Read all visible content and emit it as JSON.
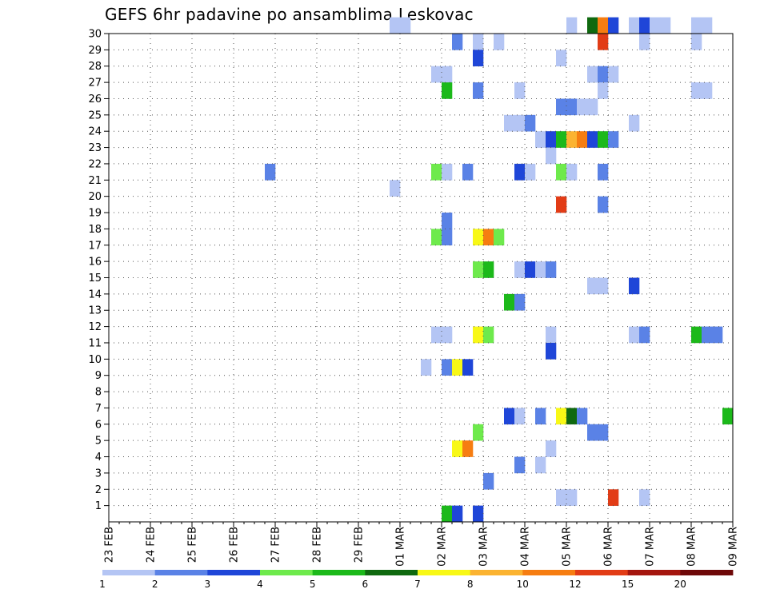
{
  "chart_data": {
    "type": "heatmap",
    "title": "GEFS 6hr padavine po ansamblima Leskovac",
    "xlabel": "",
    "ylabel": "",
    "x_tick_labels": [
      "23 FEB",
      "24 FEB",
      "25 FEB",
      "26 FEB",
      "27 FEB",
      "28 FEB",
      "29 FEB",
      "01 MAR",
      "02 MAR",
      "03 MAR",
      "04 MAR",
      "05 MAR",
      "06 MAR",
      "07 MAR",
      "08 MAR",
      "09 MAR"
    ],
    "y_tick_labels": [
      "1",
      "2",
      "3",
      "4",
      "5",
      "6",
      "7",
      "8",
      "9",
      "10",
      "11",
      "12",
      "13",
      "14",
      "15",
      "16",
      "17",
      "18",
      "19",
      "20",
      "21",
      "22",
      "23",
      "24",
      "25",
      "26",
      "27",
      "28",
      "29",
      "30"
    ],
    "x_range_days": [
      0,
      15
    ],
    "y_range": [
      0,
      30
    ],
    "grid": true,
    "time_step_hours": 6,
    "colorbar": {
      "tick_labels": [
        "1",
        "2",
        "3",
        "4",
        "5",
        "6",
        "7",
        "8",
        "10",
        "12",
        "15",
        "20"
      ],
      "colors": [
        "#b4c5f4",
        "#5a82e6",
        "#1f46d8",
        "#6eea4c",
        "#1cb91a",
        "#0f690f",
        "#f8f816",
        "#fbb331",
        "#f67d11",
        "#e23c16",
        "#a5160e",
        "#6e0808"
      ]
    },
    "cells": [
      {
        "m": 30,
        "s": 27,
        "c": 0
      },
      {
        "m": 30,
        "s": 28,
        "c": 0
      },
      {
        "m": 30,
        "s": 44,
        "c": 0
      },
      {
        "m": 30,
        "s": 46,
        "c": 5
      },
      {
        "m": 30,
        "s": 47,
        "c": 8
      },
      {
        "m": 30,
        "s": 48,
        "c": 2
      },
      {
        "m": 30,
        "s": 50,
        "c": 0
      },
      {
        "m": 30,
        "s": 51,
        "c": 2
      },
      {
        "m": 30,
        "s": 52,
        "c": 0
      },
      {
        "m": 30,
        "s": 53,
        "c": 0
      },
      {
        "m": 30,
        "s": 56,
        "c": 0
      },
      {
        "m": 30,
        "s": 57,
        "c": 0
      },
      {
        "m": 29,
        "s": 33,
        "c": 1
      },
      {
        "m": 29,
        "s": 35,
        "c": 0
      },
      {
        "m": 29,
        "s": 37,
        "c": 0
      },
      {
        "m": 29,
        "s": 47,
        "c": 9
      },
      {
        "m": 29,
        "s": 51,
        "c": 0
      },
      {
        "m": 29,
        "s": 56,
        "c": 0
      },
      {
        "m": 28,
        "s": 35,
        "c": 2
      },
      {
        "m": 28,
        "s": 43,
        "c": 0
      },
      {
        "m": 27,
        "s": 31,
        "c": 0
      },
      {
        "m": 27,
        "s": 32,
        "c": 0
      },
      {
        "m": 27,
        "s": 46,
        "c": 0
      },
      {
        "m": 27,
        "s": 47,
        "c": 1
      },
      {
        "m": 27,
        "s": 48,
        "c": 0
      },
      {
        "m": 26,
        "s": 32,
        "c": 4
      },
      {
        "m": 26,
        "s": 35,
        "c": 1
      },
      {
        "m": 26,
        "s": 39,
        "c": 0
      },
      {
        "m": 26,
        "s": 47,
        "c": 0
      },
      {
        "m": 26,
        "s": 56,
        "c": 0
      },
      {
        "m": 26,
        "s": 57,
        "c": 0
      },
      {
        "m": 25,
        "s": 43,
        "c": 1
      },
      {
        "m": 25,
        "s": 44,
        "c": 1
      },
      {
        "m": 25,
        "s": 45,
        "c": 0
      },
      {
        "m": 25,
        "s": 46,
        "c": 0
      },
      {
        "m": 24,
        "s": 38,
        "c": 0
      },
      {
        "m": 24,
        "s": 39,
        "c": 0
      },
      {
        "m": 24,
        "s": 40,
        "c": 1
      },
      {
        "m": 24,
        "s": 50,
        "c": 0
      },
      {
        "m": 23,
        "s": 41,
        "c": 0
      },
      {
        "m": 23,
        "s": 42,
        "c": 2
      },
      {
        "m": 23,
        "s": 43,
        "c": 4
      },
      {
        "m": 23,
        "s": 44,
        "c": 7
      },
      {
        "m": 23,
        "s": 45,
        "c": 8
      },
      {
        "m": 23,
        "s": 46,
        "c": 2
      },
      {
        "m": 23,
        "s": 47,
        "c": 4
      },
      {
        "m": 23,
        "s": 48,
        "c": 1
      },
      {
        "m": 22,
        "s": 42,
        "c": 0
      },
      {
        "m": 21,
        "s": 15,
        "c": 1
      },
      {
        "m": 21,
        "s": 31,
        "c": 3
      },
      {
        "m": 21,
        "s": 32,
        "c": 0
      },
      {
        "m": 21,
        "s": 34,
        "c": 1
      },
      {
        "m": 21,
        "s": 39,
        "c": 2
      },
      {
        "m": 21,
        "s": 40,
        "c": 0
      },
      {
        "m": 21,
        "s": 43,
        "c": 3
      },
      {
        "m": 21,
        "s": 44,
        "c": 0
      },
      {
        "m": 21,
        "s": 47,
        "c": 1
      },
      {
        "m": 20,
        "s": 27,
        "c": 0
      },
      {
        "m": 19,
        "s": 43,
        "c": 9
      },
      {
        "m": 19,
        "s": 47,
        "c": 1
      },
      {
        "m": 18,
        "s": 32,
        "c": 1
      },
      {
        "m": 17,
        "s": 31,
        "c": 3
      },
      {
        "m": 17,
        "s": 32,
        "c": 1
      },
      {
        "m": 17,
        "s": 35,
        "c": 6
      },
      {
        "m": 17,
        "s": 36,
        "c": 8
      },
      {
        "m": 17,
        "s": 37,
        "c": 3
      },
      {
        "m": 15,
        "s": 35,
        "c": 3
      },
      {
        "m": 15,
        "s": 36,
        "c": 4
      },
      {
        "m": 15,
        "s": 39,
        "c": 0
      },
      {
        "m": 15,
        "s": 40,
        "c": 2
      },
      {
        "m": 15,
        "s": 41,
        "c": 0
      },
      {
        "m": 15,
        "s": 42,
        "c": 1
      },
      {
        "m": 14,
        "s": 46,
        "c": 0
      },
      {
        "m": 14,
        "s": 47,
        "c": 0
      },
      {
        "m": 14,
        "s": 50,
        "c": 2
      },
      {
        "m": 13,
        "s": 38,
        "c": 4
      },
      {
        "m": 13,
        "s": 39,
        "c": 1
      },
      {
        "m": 11,
        "s": 31,
        "c": 0
      },
      {
        "m": 11,
        "s": 32,
        "c": 0
      },
      {
        "m": 11,
        "s": 35,
        "c": 6
      },
      {
        "m": 11,
        "s": 36,
        "c": 3
      },
      {
        "m": 11,
        "s": 42,
        "c": 0
      },
      {
        "m": 11,
        "s": 50,
        "c": 0
      },
      {
        "m": 11,
        "s": 51,
        "c": 1
      },
      {
        "m": 11,
        "s": 56,
        "c": 4
      },
      {
        "m": 11,
        "s": 57,
        "c": 1
      },
      {
        "m": 11,
        "s": 58,
        "c": 1
      },
      {
        "m": 10,
        "s": 42,
        "c": 2
      },
      {
        "m": 9,
        "s": 30,
        "c": 0
      },
      {
        "m": 9,
        "s": 32,
        "c": 1
      },
      {
        "m": 9,
        "s": 33,
        "c": 6
      },
      {
        "m": 9,
        "s": 34,
        "c": 2
      },
      {
        "m": 6,
        "s": 38,
        "c": 2
      },
      {
        "m": 6,
        "s": 39,
        "c": 0
      },
      {
        "m": 6,
        "s": 41,
        "c": 1
      },
      {
        "m": 6,
        "s": 43,
        "c": 6
      },
      {
        "m": 6,
        "s": 44,
        "c": 5
      },
      {
        "m": 6,
        "s": 45,
        "c": 1
      },
      {
        "m": 6,
        "s": 59,
        "c": 4
      },
      {
        "m": 5,
        "s": 35,
        "c": 3
      },
      {
        "m": 5,
        "s": 46,
        "c": 1
      },
      {
        "m": 5,
        "s": 47,
        "c": 1
      },
      {
        "m": 4,
        "s": 33,
        "c": 6
      },
      {
        "m": 4,
        "s": 34,
        "c": 8
      },
      {
        "m": 4,
        "s": 42,
        "c": 0
      },
      {
        "m": 3,
        "s": 39,
        "c": 1
      },
      {
        "m": 3,
        "s": 41,
        "c": 0
      },
      {
        "m": 2,
        "s": 36,
        "c": 1
      },
      {
        "m": 1,
        "s": 43,
        "c": 0
      },
      {
        "m": 1,
        "s": 44,
        "c": 0
      },
      {
        "m": 1,
        "s": 48,
        "c": 9
      },
      {
        "m": 1,
        "s": 51,
        "c": 0
      },
      {
        "m": 0,
        "s": 32,
        "c": 4
      },
      {
        "m": 0,
        "s": 33,
        "c": 2
      },
      {
        "m": 0,
        "s": 35,
        "c": 2
      }
    ]
  }
}
